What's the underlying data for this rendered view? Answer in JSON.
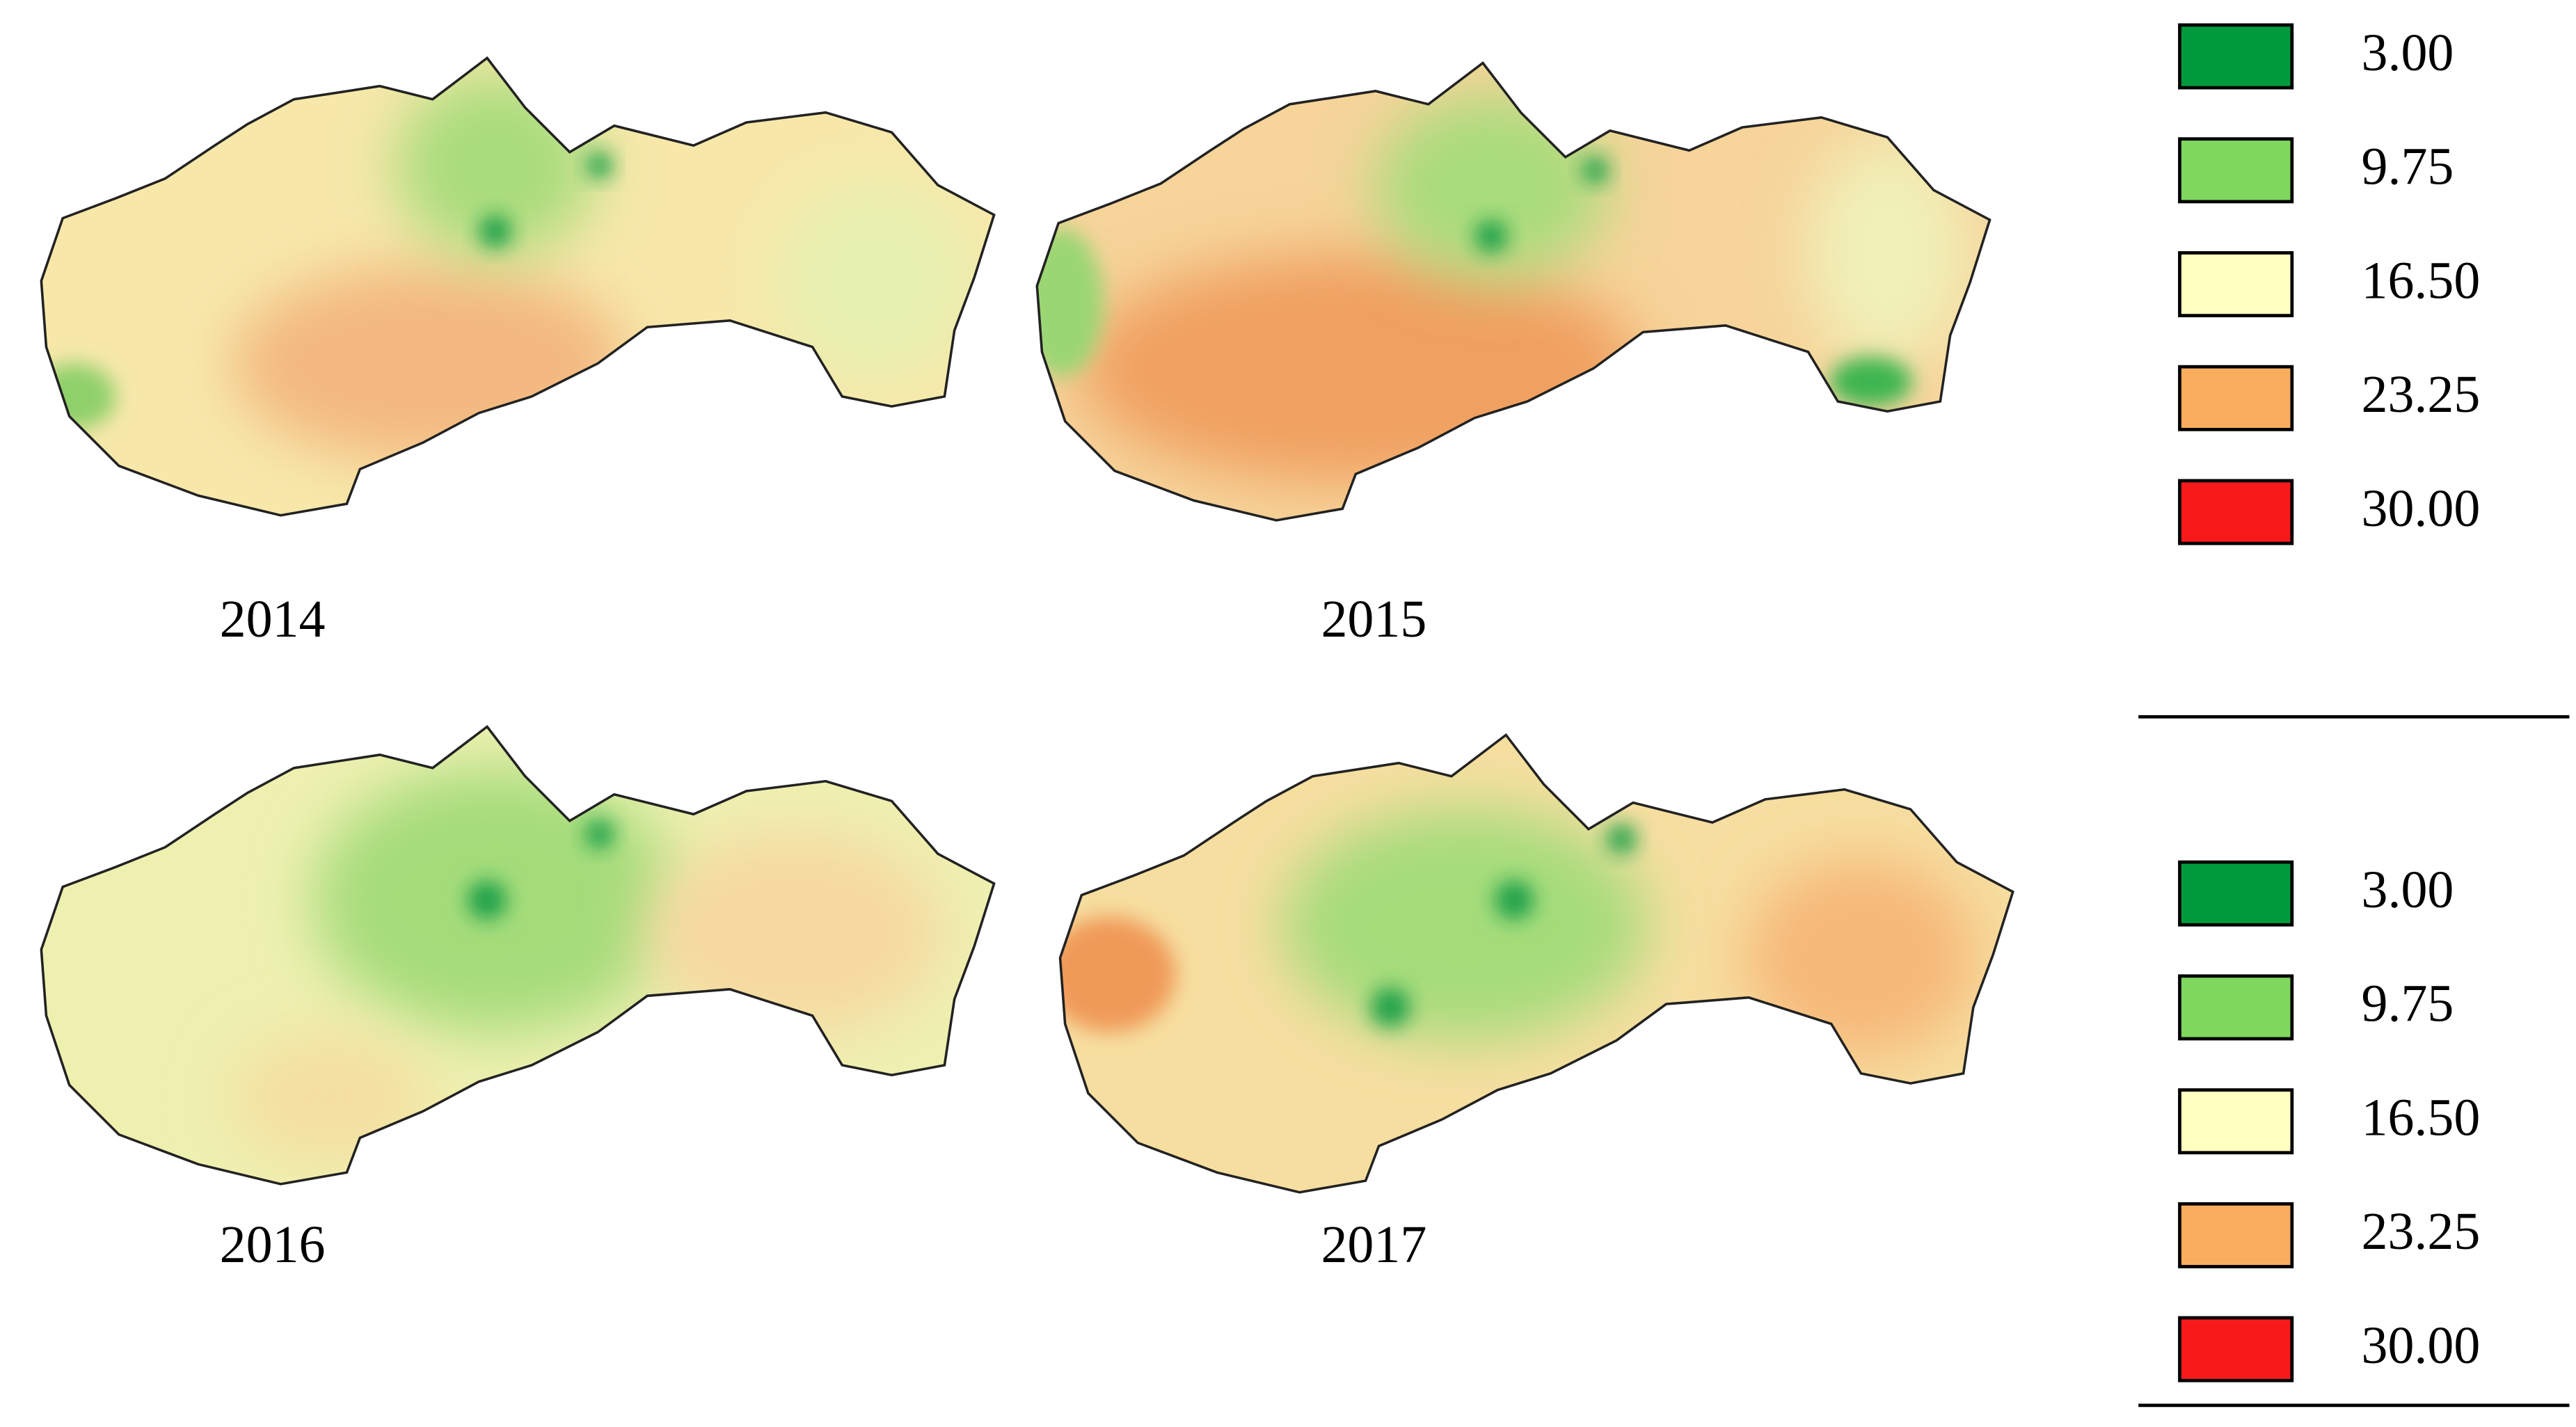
{
  "maps": [
    {
      "label": "2014"
    },
    {
      "label": "2015"
    },
    {
      "label": "2016"
    },
    {
      "label": "2017"
    }
  ],
  "legends": [
    {
      "items": [
        {
          "label": "3.00",
          "color": "#009a3c"
        },
        {
          "label": "9.75",
          "color": "#7fd75e"
        },
        {
          "label": "16.50",
          "color": "#ffffc0"
        },
        {
          "label": "23.25",
          "color": "#fbad5e"
        },
        {
          "label": "30.00",
          "color": "#f81a1a"
        }
      ]
    },
    {
      "items": [
        {
          "label": "3.00",
          "color": "#009a3c"
        },
        {
          "label": "9.75",
          "color": "#7fd75e"
        },
        {
          "label": "16.50",
          "color": "#ffffc0"
        },
        {
          "label": "23.25",
          "color": "#fbad5e"
        },
        {
          "label": "30.00",
          "color": "#f81a1a"
        }
      ]
    }
  ]
}
